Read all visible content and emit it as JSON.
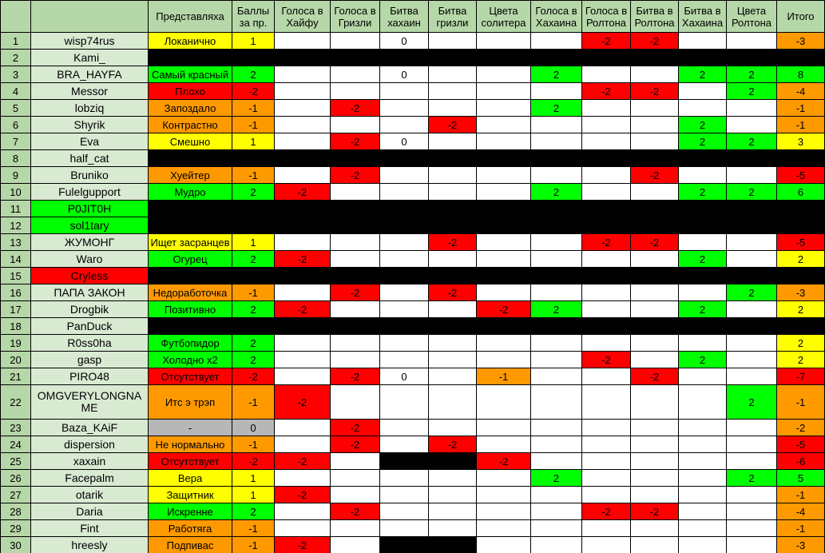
{
  "table": {
    "headers": [
      "",
      "",
      "Представляха",
      "Баллы за пр.",
      "Голоса в Хайфу",
      "Голоса в Гризли",
      "Битва хахаин",
      "Битва гризли",
      "Цвета солитера",
      "Голоса в Хахаина",
      "Голоса в Ролтона",
      "Битва в Ролтона",
      "Битва в Хахаина",
      "Цвета Ролтона",
      "Итого"
    ],
    "palette": {
      "w": "#ffffff",
      "g": "#00ff00",
      "r": "#ff0000",
      "o": "#ff9900",
      "y": "#ffff00",
      "gy": "#b7b7b7",
      "k": "#000000",
      "header_green": "#b6d7a8",
      "name_green": "#d9ead3"
    },
    "rows": [
      {
        "num": "1",
        "name": "wisp74rus",
        "pred": [
          "Локанично",
          "y"
        ],
        "score": [
          "1",
          "y"
        ],
        "cells": {
          "2": [
            "0",
            "w"
          ],
          "6": [
            "-2",
            "r"
          ],
          "7": [
            "-2",
            "r"
          ],
          "10": [
            "-3",
            "o"
          ]
        }
      },
      {
        "num": "2",
        "name": "Kami_",
        "black": true
      },
      {
        "num": "3",
        "name": "BRA_HAYFA",
        "pred": [
          "Самый красный",
          "g"
        ],
        "score": [
          "2",
          "g"
        ],
        "cells": {
          "2": [
            "0",
            "w"
          ],
          "5": [
            "2",
            "g"
          ],
          "8": [
            "2",
            "g"
          ],
          "9": [
            "2",
            "g"
          ],
          "10": [
            "8",
            "g"
          ]
        }
      },
      {
        "num": "4",
        "name": "Messor",
        "pred": [
          "Плохо",
          "r"
        ],
        "score": [
          "-2",
          "r"
        ],
        "cells": {
          "6": [
            "-2",
            "r"
          ],
          "7": [
            "-2",
            "r"
          ],
          "9": [
            "2",
            "g"
          ],
          "10": [
            "-4",
            "o"
          ]
        }
      },
      {
        "num": "5",
        "name": "lobziq",
        "pred": [
          "Запоздало",
          "o"
        ],
        "score": [
          "-1",
          "o"
        ],
        "cells": {
          "1": [
            "-2",
            "r"
          ],
          "5": [
            "2",
            "g"
          ],
          "10": [
            "-1",
            "o"
          ]
        }
      },
      {
        "num": "6",
        "name": "Shyrik",
        "pred": [
          "Контрастно",
          "o"
        ],
        "score": [
          "-1",
          "o"
        ],
        "cells": {
          "3": [
            "-2",
            "r"
          ],
          "8": [
            "2",
            "g"
          ],
          "10": [
            "-1",
            "o"
          ]
        }
      },
      {
        "num": "7",
        "name": "Eva",
        "pred": [
          "Смешно",
          "y"
        ],
        "score": [
          "1",
          "y"
        ],
        "cells": {
          "1": [
            "-2",
            "r"
          ],
          "2": [
            "0",
            "w"
          ],
          "8": [
            "2",
            "g"
          ],
          "9": [
            "2",
            "g"
          ],
          "10": [
            "3",
            "y"
          ]
        }
      },
      {
        "num": "8",
        "name": "half_cat",
        "black": true
      },
      {
        "num": "9",
        "name": "Bruniko",
        "pred": [
          "Хуейтер",
          "o"
        ],
        "score": [
          "-1",
          "o"
        ],
        "cells": {
          "1": [
            "-2",
            "r"
          ],
          "7": [
            "-2",
            "r"
          ],
          "10": [
            "-5",
            "r"
          ]
        }
      },
      {
        "num": "10",
        "name": "Fulelgupport",
        "pred": [
          "Мудро",
          "g"
        ],
        "score": [
          "2",
          "g"
        ],
        "cells": {
          "0": [
            "-2",
            "r"
          ],
          "5": [
            "2",
            "g"
          ],
          "8": [
            "2",
            "g"
          ],
          "9": [
            "2",
            "g"
          ],
          "10": [
            "6",
            "g"
          ]
        }
      },
      {
        "num": "11",
        "name": "P0JIT0H",
        "name_bg": "g",
        "black": true
      },
      {
        "num": "12",
        "name": "sol1tary",
        "name_bg": "g",
        "black": true
      },
      {
        "num": "13",
        "name": "ЖУМОНГ",
        "pred": [
          "Ищет засранцев",
          "y"
        ],
        "score": [
          "1",
          "y"
        ],
        "cells": {
          "3": [
            "-2",
            "r"
          ],
          "6": [
            "-2",
            "r"
          ],
          "7": [
            "-2",
            "r"
          ],
          "10": [
            "-5",
            "r"
          ]
        }
      },
      {
        "num": "14",
        "name": "Waro",
        "pred": [
          "Огурец",
          "g"
        ],
        "score": [
          "2",
          "g"
        ],
        "cells": {
          "0": [
            "-2",
            "r"
          ],
          "8": [
            "2",
            "g"
          ],
          "10": [
            "2",
            "y"
          ]
        }
      },
      {
        "num": "15",
        "name": "Cryless",
        "name_bg": "r",
        "black": true
      },
      {
        "num": "16",
        "name": "ПАПА ЗАКОН",
        "pred": [
          "Недоработочка",
          "o"
        ],
        "score": [
          "-1",
          "o"
        ],
        "cells": {
          "1": [
            "-2",
            "r"
          ],
          "3": [
            "-2",
            "r"
          ],
          "9": [
            "2",
            "g"
          ],
          "10": [
            "-3",
            "o"
          ]
        }
      },
      {
        "num": "17",
        "name": "Drogbik",
        "pred": [
          "Позитивно",
          "g"
        ],
        "score": [
          "2",
          "g"
        ],
        "cells": {
          "0": [
            "-2",
            "r"
          ],
          "4": [
            "-2",
            "r"
          ],
          "5": [
            "2",
            "g"
          ],
          "8": [
            "2",
            "g"
          ],
          "10": [
            "2",
            "y"
          ]
        }
      },
      {
        "num": "18",
        "name": "PanDuck",
        "black": true
      },
      {
        "num": "19",
        "name": "R0ss0ha",
        "pred": [
          "Футбопидор",
          "g"
        ],
        "score": [
          "2",
          "g"
        ],
        "cells": {
          "10": [
            "2",
            "y"
          ]
        }
      },
      {
        "num": "20",
        "name": "gasp",
        "pred": [
          "Холодно x2",
          "g"
        ],
        "score": [
          "2",
          "g"
        ],
        "cells": {
          "6": [
            "-2",
            "r"
          ],
          "8": [
            "2",
            "g"
          ],
          "10": [
            "2",
            "y"
          ]
        }
      },
      {
        "num": "21",
        "name": "PIRO48",
        "pred": [
          "Отсутствует",
          "r"
        ],
        "score": [
          "-2",
          "r"
        ],
        "cells": {
          "1": [
            "-2",
            "r"
          ],
          "2": [
            "0",
            "w"
          ],
          "4": [
            "-1",
            "o"
          ],
          "7": [
            "-2",
            "r"
          ],
          "10": [
            "-7",
            "r"
          ]
        }
      },
      {
        "num": "22",
        "name": "OMGVERYLONGNAME",
        "tall": true,
        "pred": [
          "Итс э трэп",
          "o"
        ],
        "score": [
          "-1",
          "o"
        ],
        "cells": {
          "0": [
            "-2",
            "r"
          ],
          "9": [
            "2",
            "g"
          ],
          "10": [
            "-1",
            "o"
          ]
        }
      },
      {
        "num": "23",
        "name": "Baza_KAiF",
        "pred": [
          "-",
          "gy"
        ],
        "score": [
          "0",
          "gy"
        ],
        "cells": {
          "1": [
            "-2",
            "r"
          ],
          "10": [
            "-2",
            "o"
          ]
        }
      },
      {
        "num": "24",
        "name": "dispersion",
        "pred": [
          "Не нормально",
          "o"
        ],
        "score": [
          "-1",
          "o"
        ],
        "cells": {
          "1": [
            "-2",
            "r"
          ],
          "3": [
            "-2",
            "r"
          ],
          "10": [
            "-5",
            "r"
          ]
        }
      },
      {
        "num": "25",
        "name": "xaxain",
        "pred": [
          "Отсутствует",
          "r"
        ],
        "score": [
          "-2",
          "r"
        ],
        "cells": {
          "0": [
            "-2",
            "r"
          ],
          "2": [
            "",
            "k"
          ],
          "3": [
            "",
            "k"
          ],
          "4": [
            "-2",
            "r"
          ],
          "10": [
            "-6",
            "r"
          ]
        }
      },
      {
        "num": "26",
        "name": "Facepalm",
        "pred": [
          "Вера",
          "y"
        ],
        "score": [
          "1",
          "y"
        ],
        "cells": {
          "5": [
            "2",
            "g"
          ],
          "9": [
            "2",
            "g"
          ],
          "10": [
            "5",
            "g"
          ]
        }
      },
      {
        "num": "27",
        "name": "otarik",
        "pred": [
          "Защитник",
          "y"
        ],
        "score": [
          "1",
          "y"
        ],
        "cells": {
          "0": [
            "-2",
            "r"
          ],
          "10": [
            "-1",
            "o"
          ]
        }
      },
      {
        "num": "28",
        "name": "Daria",
        "pred": [
          "Искренне",
          "g"
        ],
        "score": [
          "2",
          "g"
        ],
        "cells": {
          "1": [
            "-2",
            "r"
          ],
          "6": [
            "-2",
            "r"
          ],
          "7": [
            "-2",
            "r"
          ],
          "10": [
            "-4",
            "o"
          ]
        }
      },
      {
        "num": "29",
        "name": "Fint",
        "pred": [
          "Работяга",
          "o"
        ],
        "score": [
          "-1",
          "o"
        ],
        "cells": {
          "10": [
            "-1",
            "o"
          ]
        }
      },
      {
        "num": "30",
        "name": "hreesly",
        "pred": [
          "Подпивас",
          "o"
        ],
        "score": [
          "-1",
          "o"
        ],
        "cells": {
          "0": [
            "-2",
            "r"
          ],
          "2": [
            "",
            "k"
          ],
          "3": [
            "",
            "k"
          ],
          "10": [
            "-3",
            "o"
          ]
        }
      }
    ]
  }
}
